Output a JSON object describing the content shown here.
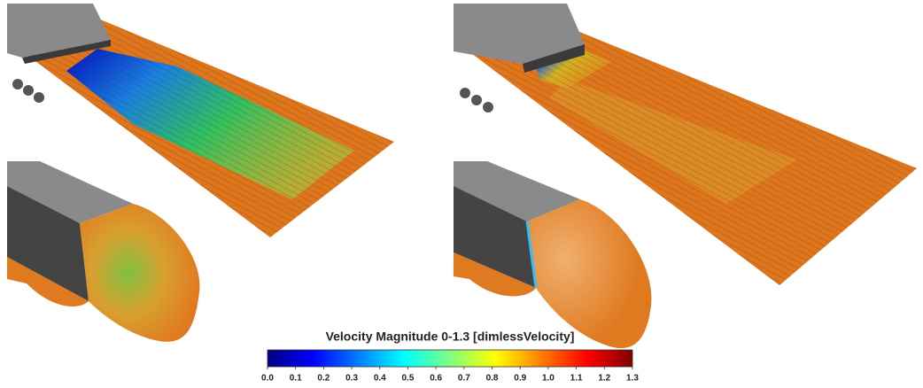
{
  "colorbar": {
    "title": "Velocity Magnitude 0-1.3 [dimlessVelocity]",
    "clim": [
      0,
      1.3
    ],
    "ticks": [
      {
        "value": 0,
        "label": "0.0"
      },
      0.1,
      0.2,
      0.3,
      0.4,
      0.5,
      0.6,
      0.7,
      0.8,
      0.9,
      {
        "value": 1,
        "label": "1.0"
      },
      1.1,
      1.2,
      1.3
    ],
    "colors": [
      "#00007f",
      "#0000ff",
      "#007fff",
      "#00ffff",
      "#7fff7f",
      "#ffff00",
      "#ff7f00",
      "#ff0000",
      "#7f0000"
    ]
  }
}
